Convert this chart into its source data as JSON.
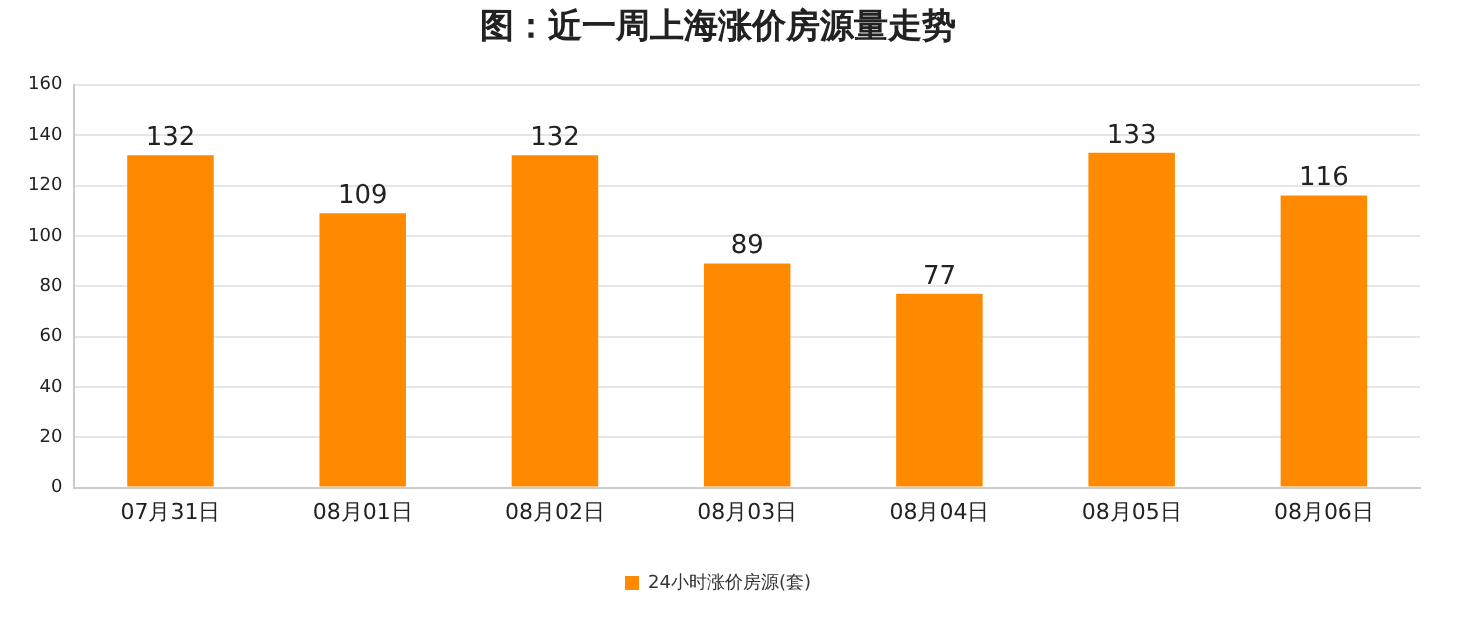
{
  "chart_data": {
    "type": "bar",
    "title": "图：近一周上海涨价房源量走势",
    "categories": [
      "07月31日",
      "08月01日",
      "08月02日",
      "08月03日",
      "08月04日",
      "08月05日",
      "08月06日"
    ],
    "series": [
      {
        "name": "24小时涨价房源(套)",
        "color": "#ff8a00",
        "values": [
          132,
          109,
          132,
          89,
          77,
          133,
          116
        ]
      }
    ],
    "ylim": [
      0,
      160
    ],
    "yticks": [
      0,
      20,
      40,
      60,
      80,
      100,
      120,
      140,
      160
    ],
    "grid": "y",
    "legend": "bottom",
    "data_labels": true
  }
}
